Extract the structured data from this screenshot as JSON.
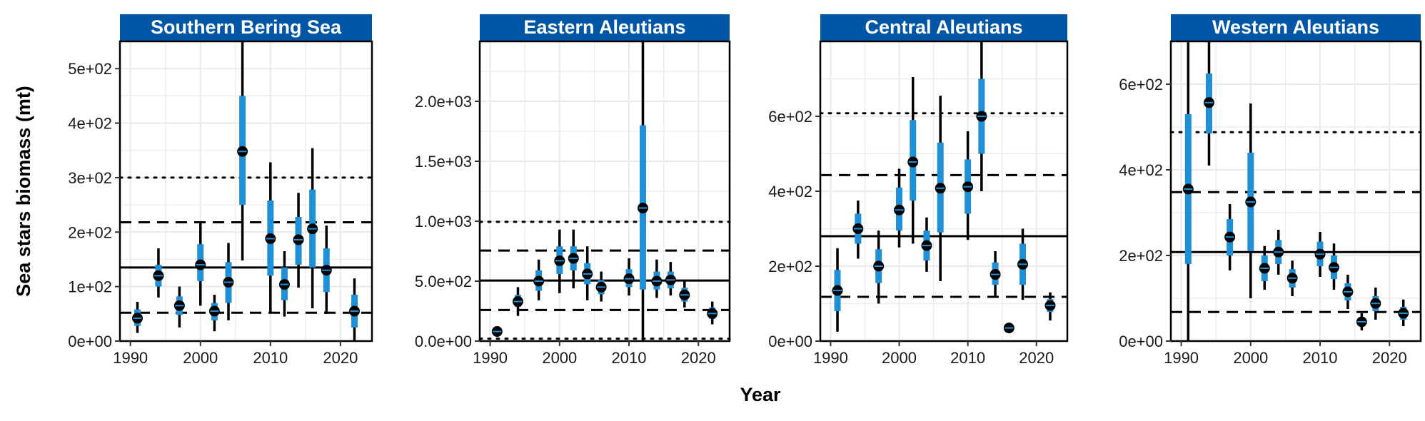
{
  "figure": {
    "ylabel": "Sea stars biomass (mt)",
    "xlabel": "Year",
    "strip_color": "#0055A4",
    "strip_text_color": "#FFFFFF",
    "bar_color": "#1F8FD6",
    "line_color": "#000000",
    "grid_color": "#EBEBEB"
  },
  "chart_data": [
    {
      "type": "errorbar",
      "title": "Southern Bering Sea",
      "ylim": [
        0,
        550
      ],
      "yticks": [
        0,
        100,
        200,
        300,
        400,
        500
      ],
      "ytick_labels": [
        "0e+00",
        "1e+02",
        "2e+02",
        "3e+02",
        "4e+02",
        "5e+02"
      ],
      "xlim": [
        1988.5,
        2024.5
      ],
      "xticks": [
        1990,
        2000,
        2010,
        2020
      ],
      "ref_lines": {
        "solid": 135,
        "dashed": [
          52,
          218
        ],
        "dotted": [
          300
        ]
      },
      "points": [
        {
          "x": 1991,
          "y": 42,
          "ci80": [
            28,
            58
          ],
          "ci95": [
            15,
            72
          ]
        },
        {
          "x": 1994,
          "y": 120,
          "ci80": [
            100,
            140
          ],
          "ci95": [
            80,
            170
          ]
        },
        {
          "x": 1997,
          "y": 65,
          "ci80": [
            48,
            82
          ],
          "ci95": [
            25,
            100
          ]
        },
        {
          "x": 2000,
          "y": 140,
          "ci80": [
            110,
            178
          ],
          "ci95": [
            65,
            220
          ]
        },
        {
          "x": 2002,
          "y": 55,
          "ci80": [
            38,
            70
          ],
          "ci95": [
            18,
            85
          ]
        },
        {
          "x": 2004,
          "y": 108,
          "ci80": [
            70,
            145
          ],
          "ci95": [
            38,
            180
          ]
        },
        {
          "x": 2006,
          "y": 348,
          "ci80": [
            250,
            450
          ],
          "ci95": [
            148,
            550
          ]
        },
        {
          "x": 2010,
          "y": 188,
          "ci80": [
            120,
            258
          ],
          "ci95": [
            52,
            328
          ]
        },
        {
          "x": 2012,
          "y": 104,
          "ci80": [
            75,
            135
          ],
          "ci95": [
            45,
            165
          ]
        },
        {
          "x": 2014,
          "y": 186,
          "ci80": [
            140,
            228
          ],
          "ci95": [
            98,
            272
          ]
        },
        {
          "x": 2016,
          "y": 206,
          "ci80": [
            135,
            278
          ],
          "ci95": [
            60,
            354
          ]
        },
        {
          "x": 2018,
          "y": 130,
          "ci80": [
            90,
            170
          ],
          "ci95": [
            50,
            212
          ]
        },
        {
          "x": 2022,
          "y": 55,
          "ci80": [
            25,
            85
          ],
          "ci95": [
            0,
            115
          ]
        }
      ]
    },
    {
      "type": "errorbar",
      "title": "Eastern Aleutians",
      "ylim": [
        0,
        2500
      ],
      "yticks": [
        0,
        500,
        1000,
        1500,
        2000
      ],
      "ytick_labels": [
        "0.0e+00",
        "5.0e+02",
        "1.0e+03",
        "1.5e+03",
        "2.0e+03"
      ],
      "xlim": [
        1988.5,
        2024.5
      ],
      "xticks": [
        1990,
        2000,
        2010,
        2020
      ],
      "ref_lines": {
        "solid": 505,
        "dashed": [
          260,
          755
        ],
        "dotted": [
          20,
          995
        ]
      },
      "points": [
        {
          "x": 1991,
          "y": 80,
          "ci80": [
            80,
            80
          ],
          "ci95": [
            80,
            80
          ]
        },
        {
          "x": 1994,
          "y": 330,
          "ci80": [
            285,
            385
          ],
          "ci95": [
            210,
            450
          ]
        },
        {
          "x": 1997,
          "y": 500,
          "ci80": [
            420,
            590
          ],
          "ci95": [
            340,
            680
          ]
        },
        {
          "x": 2000,
          "y": 670,
          "ci80": [
            560,
            790
          ],
          "ci95": [
            400,
            930
          ]
        },
        {
          "x": 2002,
          "y": 690,
          "ci80": [
            590,
            790
          ],
          "ci95": [
            440,
            930
          ]
        },
        {
          "x": 2004,
          "y": 560,
          "ci80": [
            475,
            650
          ],
          "ci95": [
            340,
            790
          ]
        },
        {
          "x": 2006,
          "y": 450,
          "ci80": [
            390,
            510
          ],
          "ci95": [
            330,
            580
          ]
        },
        {
          "x": 2010,
          "y": 520,
          "ci80": [
            450,
            600
          ],
          "ci95": [
            380,
            690
          ]
        },
        {
          "x": 2012,
          "y": 1110,
          "ci80": [
            430,
            1800
          ],
          "ci95": [
            0,
            2500
          ]
        },
        {
          "x": 2014,
          "y": 500,
          "ci80": [
            430,
            580
          ],
          "ci95": [
            360,
            680
          ]
        },
        {
          "x": 2016,
          "y": 510,
          "ci80": [
            440,
            580
          ],
          "ci95": [
            380,
            660
          ]
        },
        {
          "x": 2018,
          "y": 385,
          "ci80": [
            330,
            445
          ],
          "ci95": [
            280,
            510
          ]
        },
        {
          "x": 2022,
          "y": 230,
          "ci80": [
            185,
            280
          ],
          "ci95": [
            140,
            330
          ]
        }
      ]
    },
    {
      "type": "errorbar",
      "title": "Central Aleutians",
      "ylim": [
        0,
        800
      ],
      "yticks": [
        0,
        200,
        400,
        600
      ],
      "ytick_labels": [
        "0e+00",
        "2e+02",
        "4e+02",
        "6e+02"
      ],
      "xlim": [
        1988.5,
        2024.5
      ],
      "xticks": [
        1990,
        2000,
        2010,
        2020
      ],
      "ref_lines": {
        "solid": 280,
        "dashed": [
          118,
          443
        ],
        "dotted": [
          608
        ]
      },
      "points": [
        {
          "x": 1991,
          "y": 135,
          "ci80": [
            80,
            190
          ],
          "ci95": [
            25,
            248
          ]
        },
        {
          "x": 1994,
          "y": 300,
          "ci80": [
            260,
            340
          ],
          "ci95": [
            220,
            375
          ]
        },
        {
          "x": 1997,
          "y": 200,
          "ci80": [
            155,
            245
          ],
          "ci95": [
            100,
            295
          ]
        },
        {
          "x": 2000,
          "y": 350,
          "ci80": [
            295,
            410
          ],
          "ci95": [
            250,
            460
          ]
        },
        {
          "x": 2002,
          "y": 478,
          "ci80": [
            375,
            590
          ],
          "ci95": [
            260,
            705
          ]
        },
        {
          "x": 2004,
          "y": 255,
          "ci80": [
            215,
            295
          ],
          "ci95": [
            185,
            330
          ]
        },
        {
          "x": 2006,
          "y": 408,
          "ci80": [
            290,
            530
          ],
          "ci95": [
            160,
            655
          ]
        },
        {
          "x": 2010,
          "y": 412,
          "ci80": [
            340,
            485
          ],
          "ci95": [
            270,
            560
          ]
        },
        {
          "x": 2012,
          "y": 600,
          "ci80": [
            500,
            700
          ],
          "ci95": [
            400,
            800
          ]
        },
        {
          "x": 2014,
          "y": 178,
          "ci80": [
            150,
            210
          ],
          "ci95": [
            120,
            240
          ]
        },
        {
          "x": 2016,
          "y": 35,
          "ci80": [
            35,
            35
          ],
          "ci95": [
            35,
            35
          ]
        },
        {
          "x": 2018,
          "y": 205,
          "ci80": [
            150,
            260
          ],
          "ci95": [
            110,
            300
          ]
        },
        {
          "x": 2022,
          "y": 95,
          "ci80": [
            78,
            112
          ],
          "ci95": [
            55,
            130
          ]
        }
      ]
    },
    {
      "type": "errorbar",
      "title": "Western Aleutians",
      "ylim": [
        0,
        700
      ],
      "yticks": [
        0,
        200,
        400,
        600
      ],
      "ytick_labels": [
        "0e+00",
        "2e+02",
        "4e+02",
        "6e+02"
      ],
      "xlim": [
        1988.5,
        2024.5
      ],
      "xticks": [
        1990,
        2000,
        2010,
        2020
      ],
      "ref_lines": {
        "solid": 208,
        "dashed": [
          68,
          348
        ],
        "dotted": [
          488
        ]
      },
      "points": [
        {
          "x": 1991,
          "y": 355,
          "ci80": [
            180,
            530
          ],
          "ci95": [
            0,
            700
          ]
        },
        {
          "x": 1994,
          "y": 557,
          "ci80": [
            485,
            625
          ],
          "ci95": [
            410,
            700
          ]
        },
        {
          "x": 1997,
          "y": 243,
          "ci80": [
            200,
            285
          ],
          "ci95": [
            165,
            320
          ]
        },
        {
          "x": 2000,
          "y": 325,
          "ci80": [
            210,
            440
          ],
          "ci95": [
            100,
            555
          ]
        },
        {
          "x": 2002,
          "y": 170,
          "ci80": [
            140,
            200
          ],
          "ci95": [
            120,
            222
          ]
        },
        {
          "x": 2004,
          "y": 208,
          "ci80": [
            180,
            236
          ],
          "ci95": [
            155,
            260
          ]
        },
        {
          "x": 2006,
          "y": 147,
          "ci80": [
            125,
            168
          ],
          "ci95": [
            105,
            188
          ]
        },
        {
          "x": 2010,
          "y": 203,
          "ci80": [
            175,
            232
          ],
          "ci95": [
            150,
            255
          ]
        },
        {
          "x": 2012,
          "y": 172,
          "ci80": [
            145,
            200
          ],
          "ci95": [
            120,
            228
          ]
        },
        {
          "x": 2014,
          "y": 115,
          "ci80": [
            95,
            135
          ],
          "ci95": [
            75,
            155
          ]
        },
        {
          "x": 2016,
          "y": 45,
          "ci80": [
            35,
            55
          ],
          "ci95": [
            25,
            65
          ]
        },
        {
          "x": 2018,
          "y": 88,
          "ci80": [
            70,
            105
          ],
          "ci95": [
            50,
            125
          ]
        },
        {
          "x": 2022,
          "y": 65,
          "ci80": [
            50,
            80
          ],
          "ci95": [
            35,
            97
          ]
        }
      ]
    }
  ]
}
